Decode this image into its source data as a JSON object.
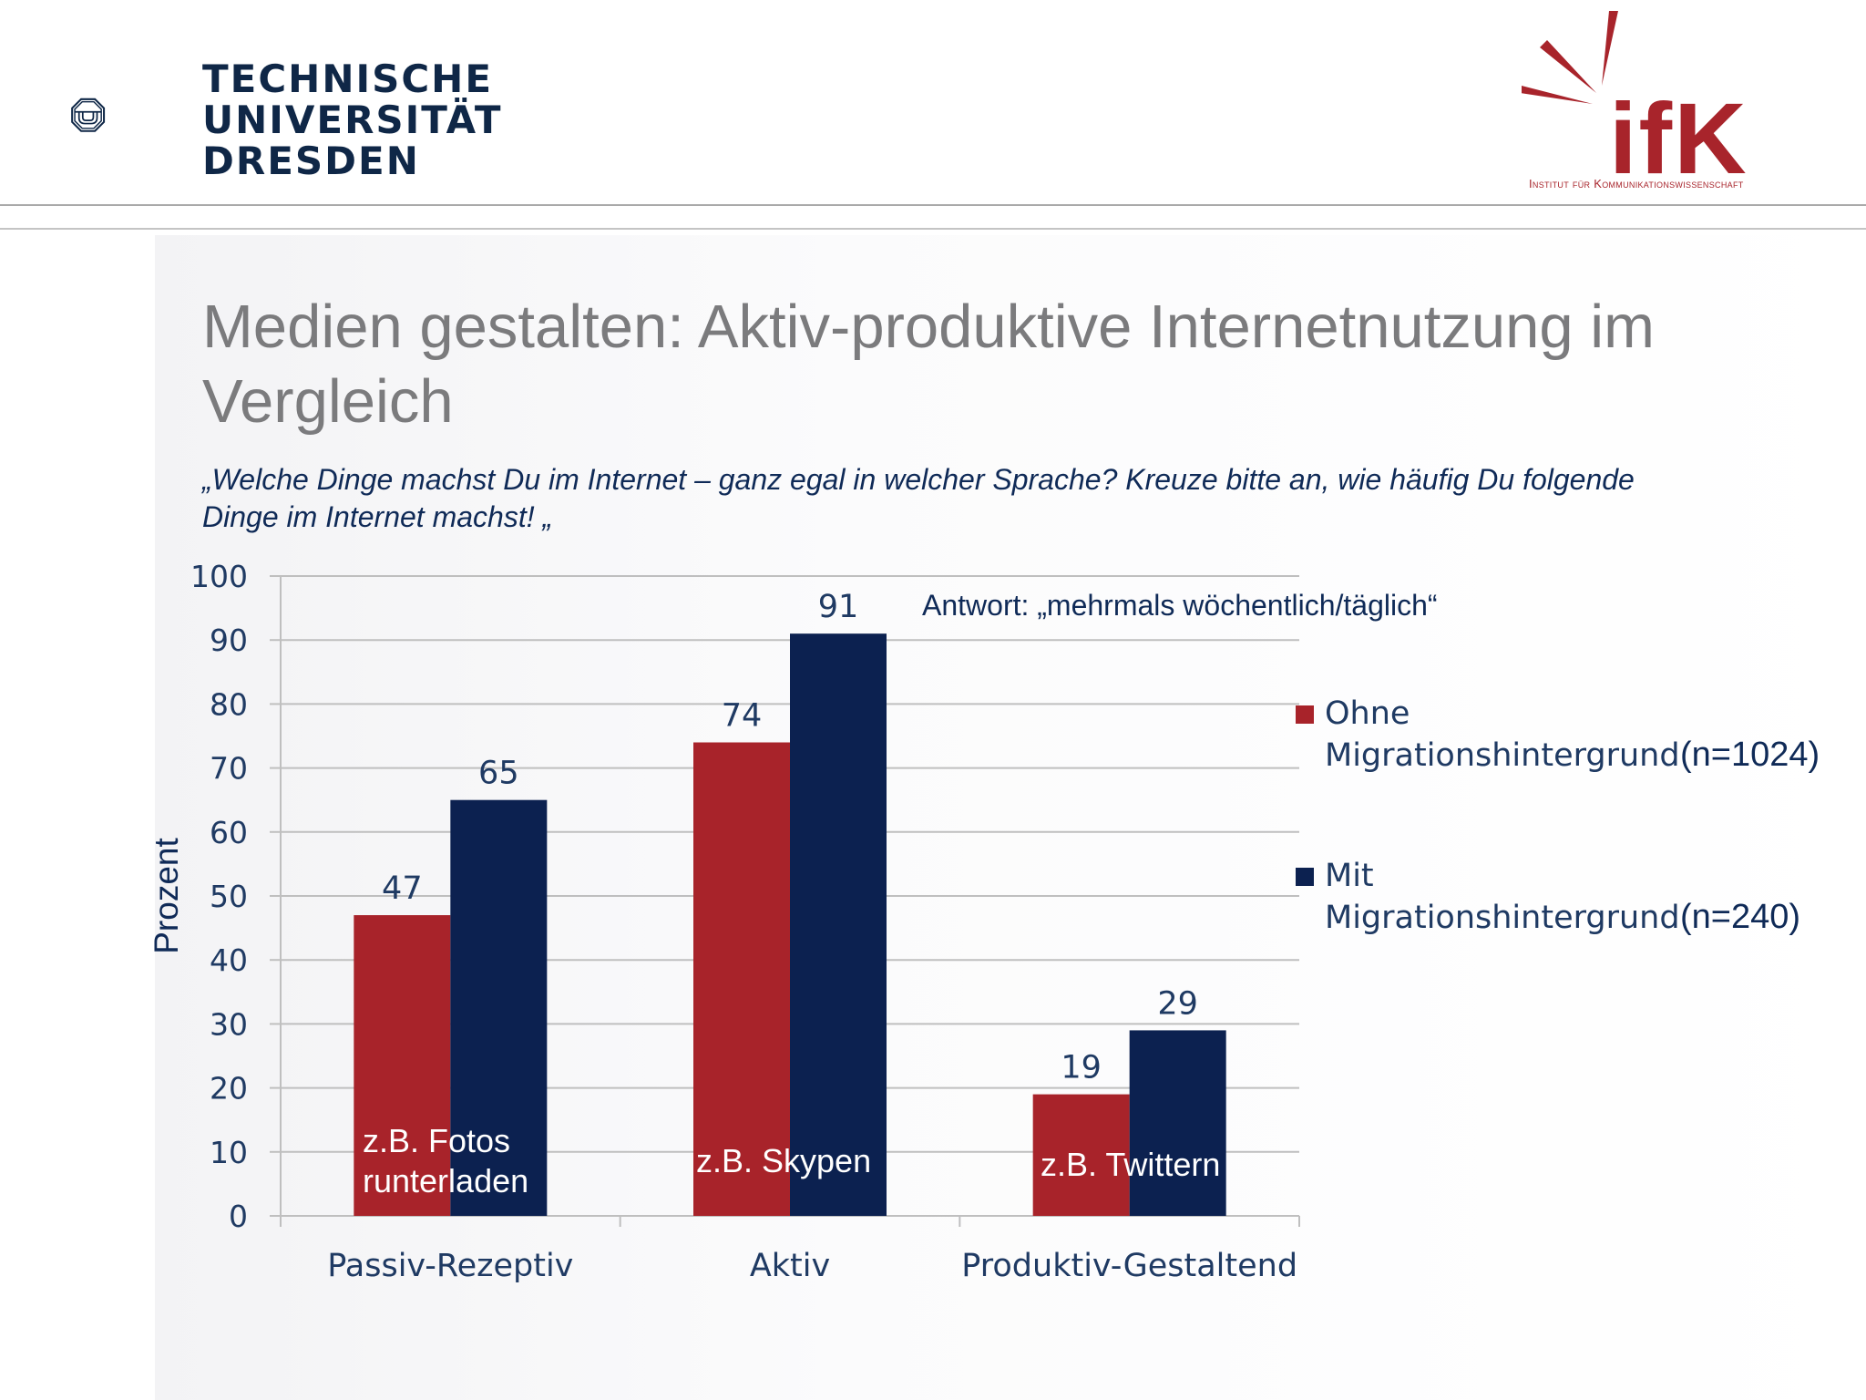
{
  "header": {
    "university": {
      "lines": [
        "TECHNISCHE",
        "UNIVERSITÄT",
        "DRESDEN"
      ],
      "logo_icon": "tu-dresden-emblem-icon"
    },
    "institute": {
      "logo_text": "ifK",
      "subtitle": "Institut für Kommunikationswissenschaft",
      "logo_icon": "ifk-sunburst-logo-icon"
    }
  },
  "slide": {
    "title": "Medien gestalten: Aktiv-produktive Internetnutzung im Vergleich",
    "question": "„Welche Dinge machst Du im Internet – ganz egal in welcher Sprache? Kreuze bitte an, wie häufig Du folgende Dinge im Internet machst! „",
    "answer_note": "Antwort: „mehrmals wöchentlich/täglich“"
  },
  "colors": {
    "ohne": "#a8232a",
    "mit": "#0c2150",
    "grid": "#bfbfbf",
    "axis_text": "#1f3a63",
    "title": "#7b7b7d",
    "brand_red": "#a8242b",
    "brand_navy": "#0f2747"
  },
  "legend": [
    {
      "name": "Ohne Migrationshintergrund",
      "n": "(n=1024)",
      "color": "#a8232a"
    },
    {
      "name": "Mit Migrationshintergrund",
      "n": "(n=240)",
      "color": "#0c2150"
    }
  ],
  "chart_data": {
    "type": "bar",
    "title": "",
    "xlabel": "",
    "ylabel": "Prozent",
    "ylim": [
      0,
      100
    ],
    "yticks": [
      0,
      10,
      20,
      30,
      40,
      50,
      60,
      70,
      80,
      90,
      100
    ],
    "grid": true,
    "legend_position": "right",
    "categories": [
      "Passiv-Rezeptiv",
      "Aktiv",
      "Produktiv-Gestaltend"
    ],
    "series": [
      {
        "name": "Ohne Migrationshintergrund (n=1024)",
        "values": [
          47,
          74,
          19
        ]
      },
      {
        "name": "Mit Migrationshintergrund (n=240)",
        "values": [
          65,
          91,
          29
        ]
      }
    ],
    "annotations": [
      "z.B. Fotos runterladen",
      "z.B. Skypen",
      "z.B. Twittern"
    ]
  }
}
